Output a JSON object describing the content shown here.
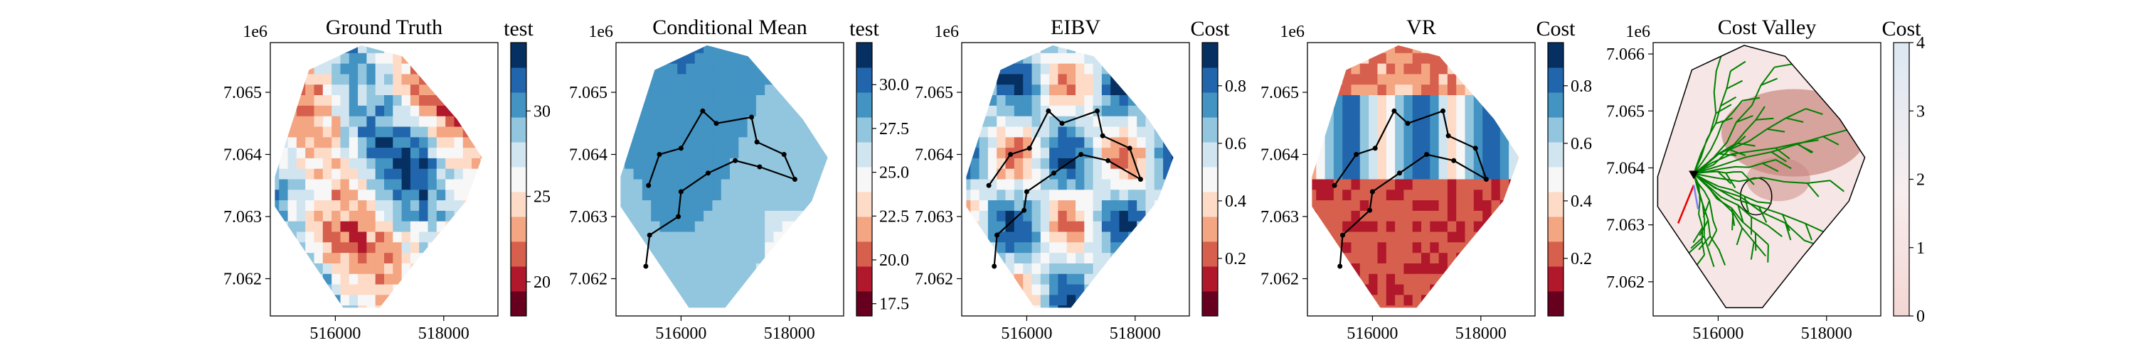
{
  "colors": {
    "rdbu": [
      "#67001f",
      "#b2182b",
      "#d6604d",
      "#f4a582",
      "#fddbc7",
      "#f7f7f7",
      "#d1e5f0",
      "#92c5de",
      "#4393c3",
      "#2166ac",
      "#053061"
    ],
    "path": "#000000",
    "tree": "#008000",
    "cost_low": "#f9ecec",
    "cost_high": "#c9867f",
    "arrow": "#e60000",
    "arrow2": "#8080ff"
  },
  "chart_data": [
    {
      "type": "heatmap",
      "title": "Ground Truth",
      "colorbar_label": "test",
      "colorbar_ticks": [
        "20",
        "25",
        "30"
      ],
      "colorbar_tick_values": [
        20,
        25,
        30
      ],
      "colorbar_range": [
        18,
        34
      ],
      "x_tick_labels": [
        "516000",
        "518000"
      ],
      "x_tick_values": [
        516000,
        518000
      ],
      "y_tick_labels": [
        "7.062",
        "7.063",
        "7.064",
        "7.065"
      ],
      "y_tick_values": [
        7.062,
        7.063,
        7.064,
        7.065
      ],
      "y_offset_label": "1e6",
      "xlim": [
        514800,
        519000
      ],
      "ylim": [
        7.0614,
        7.0658
      ],
      "field_mean": 28,
      "path": [],
      "cmap": "RdBu"
    },
    {
      "type": "heatmap",
      "title": "Conditional Mean",
      "colorbar_label": "test",
      "colorbar_ticks": [
        "17.5",
        "20.0",
        "22.5",
        "25.0",
        "27.5",
        "30.0"
      ],
      "colorbar_tick_values": [
        17.5,
        20.0,
        22.5,
        25.0,
        27.5,
        30.0
      ],
      "colorbar_range": [
        16.8,
        32.4
      ],
      "x_tick_labels": [
        "516000",
        "518000"
      ],
      "x_tick_values": [
        516000,
        518000
      ],
      "y_tick_labels": [
        "7.062",
        "7.063",
        "7.064",
        "7.065"
      ],
      "y_tick_values": [
        7.062,
        7.063,
        7.064,
        7.065
      ],
      "y_offset_label": "1e6",
      "xlim": [
        514800,
        519000
      ],
      "ylim": [
        7.0614,
        7.0658
      ],
      "path": [
        [
          515350,
          7.0622
        ],
        [
          515420,
          7.0627
        ],
        [
          515950,
          7.063
        ],
        [
          516000,
          7.0634
        ],
        [
          516500,
          7.0637
        ],
        [
          517000,
          7.0639
        ],
        [
          517450,
          7.0638
        ],
        [
          518100,
          7.0636
        ],
        [
          517900,
          7.064
        ],
        [
          517400,
          7.0642
        ],
        [
          517300,
          7.0646
        ],
        [
          516650,
          7.0645
        ],
        [
          516400,
          7.0647
        ],
        [
          516000,
          7.0641
        ],
        [
          515600,
          7.064
        ],
        [
          515400,
          7.0635
        ]
      ],
      "cmap": "RdBu"
    },
    {
      "type": "heatmap",
      "title": "EIBV",
      "colorbar_label": "Cost",
      "colorbar_ticks": [
        "0.2",
        "0.4",
        "0.6",
        "0.8"
      ],
      "colorbar_tick_values": [
        0.2,
        0.4,
        0.6,
        0.8
      ],
      "colorbar_range": [
        0,
        0.95
      ],
      "x_tick_labels": [
        "516000",
        "518000"
      ],
      "x_tick_values": [
        516000,
        518000
      ],
      "y_tick_labels": [
        "7.062",
        "7.063",
        "7.064",
        "7.065"
      ],
      "y_tick_values": [
        7.062,
        7.063,
        7.064,
        7.065
      ],
      "y_offset_label": "1e6",
      "xlim": [
        514800,
        519000
      ],
      "ylim": [
        7.0614,
        7.0658
      ],
      "path": [
        [
          515400,
          7.0622
        ],
        [
          515450,
          7.0627
        ],
        [
          515950,
          7.0631
        ],
        [
          516000,
          7.0634
        ],
        [
          516500,
          7.0637
        ],
        [
          517000,
          7.064
        ],
        [
          517500,
          7.0639
        ],
        [
          518100,
          7.0636
        ],
        [
          517900,
          7.0641
        ],
        [
          517400,
          7.0643
        ],
        [
          517300,
          7.0647
        ],
        [
          516650,
          7.0645
        ],
        [
          516400,
          7.0647
        ],
        [
          516050,
          7.0641
        ],
        [
          515700,
          7.064
        ],
        [
          515300,
          7.0635
        ]
      ],
      "cmap": "RdBu"
    },
    {
      "type": "heatmap",
      "title": "VR",
      "colorbar_label": "Cost",
      "colorbar_ticks": [
        "0.2",
        "0.4",
        "0.6",
        "0.8"
      ],
      "colorbar_tick_values": [
        0.2,
        0.4,
        0.6,
        0.8
      ],
      "colorbar_range": [
        0,
        0.95
      ],
      "x_tick_labels": [
        "516000",
        "518000"
      ],
      "x_tick_values": [
        516000,
        518000
      ],
      "y_tick_labels": [
        "7.062",
        "7.063",
        "7.064",
        "7.065"
      ],
      "y_tick_values": [
        7.062,
        7.063,
        7.064,
        7.065
      ],
      "y_offset_label": "1e6",
      "xlim": [
        514800,
        519000
      ],
      "ylim": [
        7.0614,
        7.0658
      ],
      "path": [
        [
          515400,
          7.0622
        ],
        [
          515450,
          7.0627
        ],
        [
          515950,
          7.0631
        ],
        [
          516000,
          7.0634
        ],
        [
          516500,
          7.0637
        ],
        [
          517000,
          7.064
        ],
        [
          517500,
          7.0639
        ],
        [
          518100,
          7.0636
        ],
        [
          517900,
          7.0641
        ],
        [
          517400,
          7.0643
        ],
        [
          517300,
          7.0647
        ],
        [
          516650,
          7.0645
        ],
        [
          516400,
          7.0647
        ],
        [
          516050,
          7.0641
        ],
        [
          515700,
          7.064
        ],
        [
          515300,
          7.0635
        ]
      ],
      "cmap": "RdBu"
    },
    {
      "type": "heatmap",
      "title": "Cost Valley",
      "colorbar_label": "Cost",
      "colorbar_ticks": [
        "0",
        "1",
        "2",
        "3",
        "4"
      ],
      "colorbar_tick_values": [
        0,
        1,
        2,
        3,
        4
      ],
      "colorbar_range": [
        0,
        4
      ],
      "x_tick_labels": [
        "516000",
        "518000"
      ],
      "x_tick_values": [
        516000,
        518000
      ],
      "y_tick_labels": [
        "7.062",
        "7.063",
        "7.064",
        "7.065",
        "7.066"
      ],
      "y_tick_values": [
        7.062,
        7.063,
        7.064,
        7.065,
        7.066
      ],
      "y_offset_label": "1e6",
      "xlim": [
        514800,
        519000
      ],
      "ylim": [
        7.0614,
        7.0662
      ],
      "current_location": [
        515550,
        7.0639
      ],
      "obstacle_center": [
        516700,
        7.0635
      ],
      "cmap": "Reds"
    }
  ]
}
